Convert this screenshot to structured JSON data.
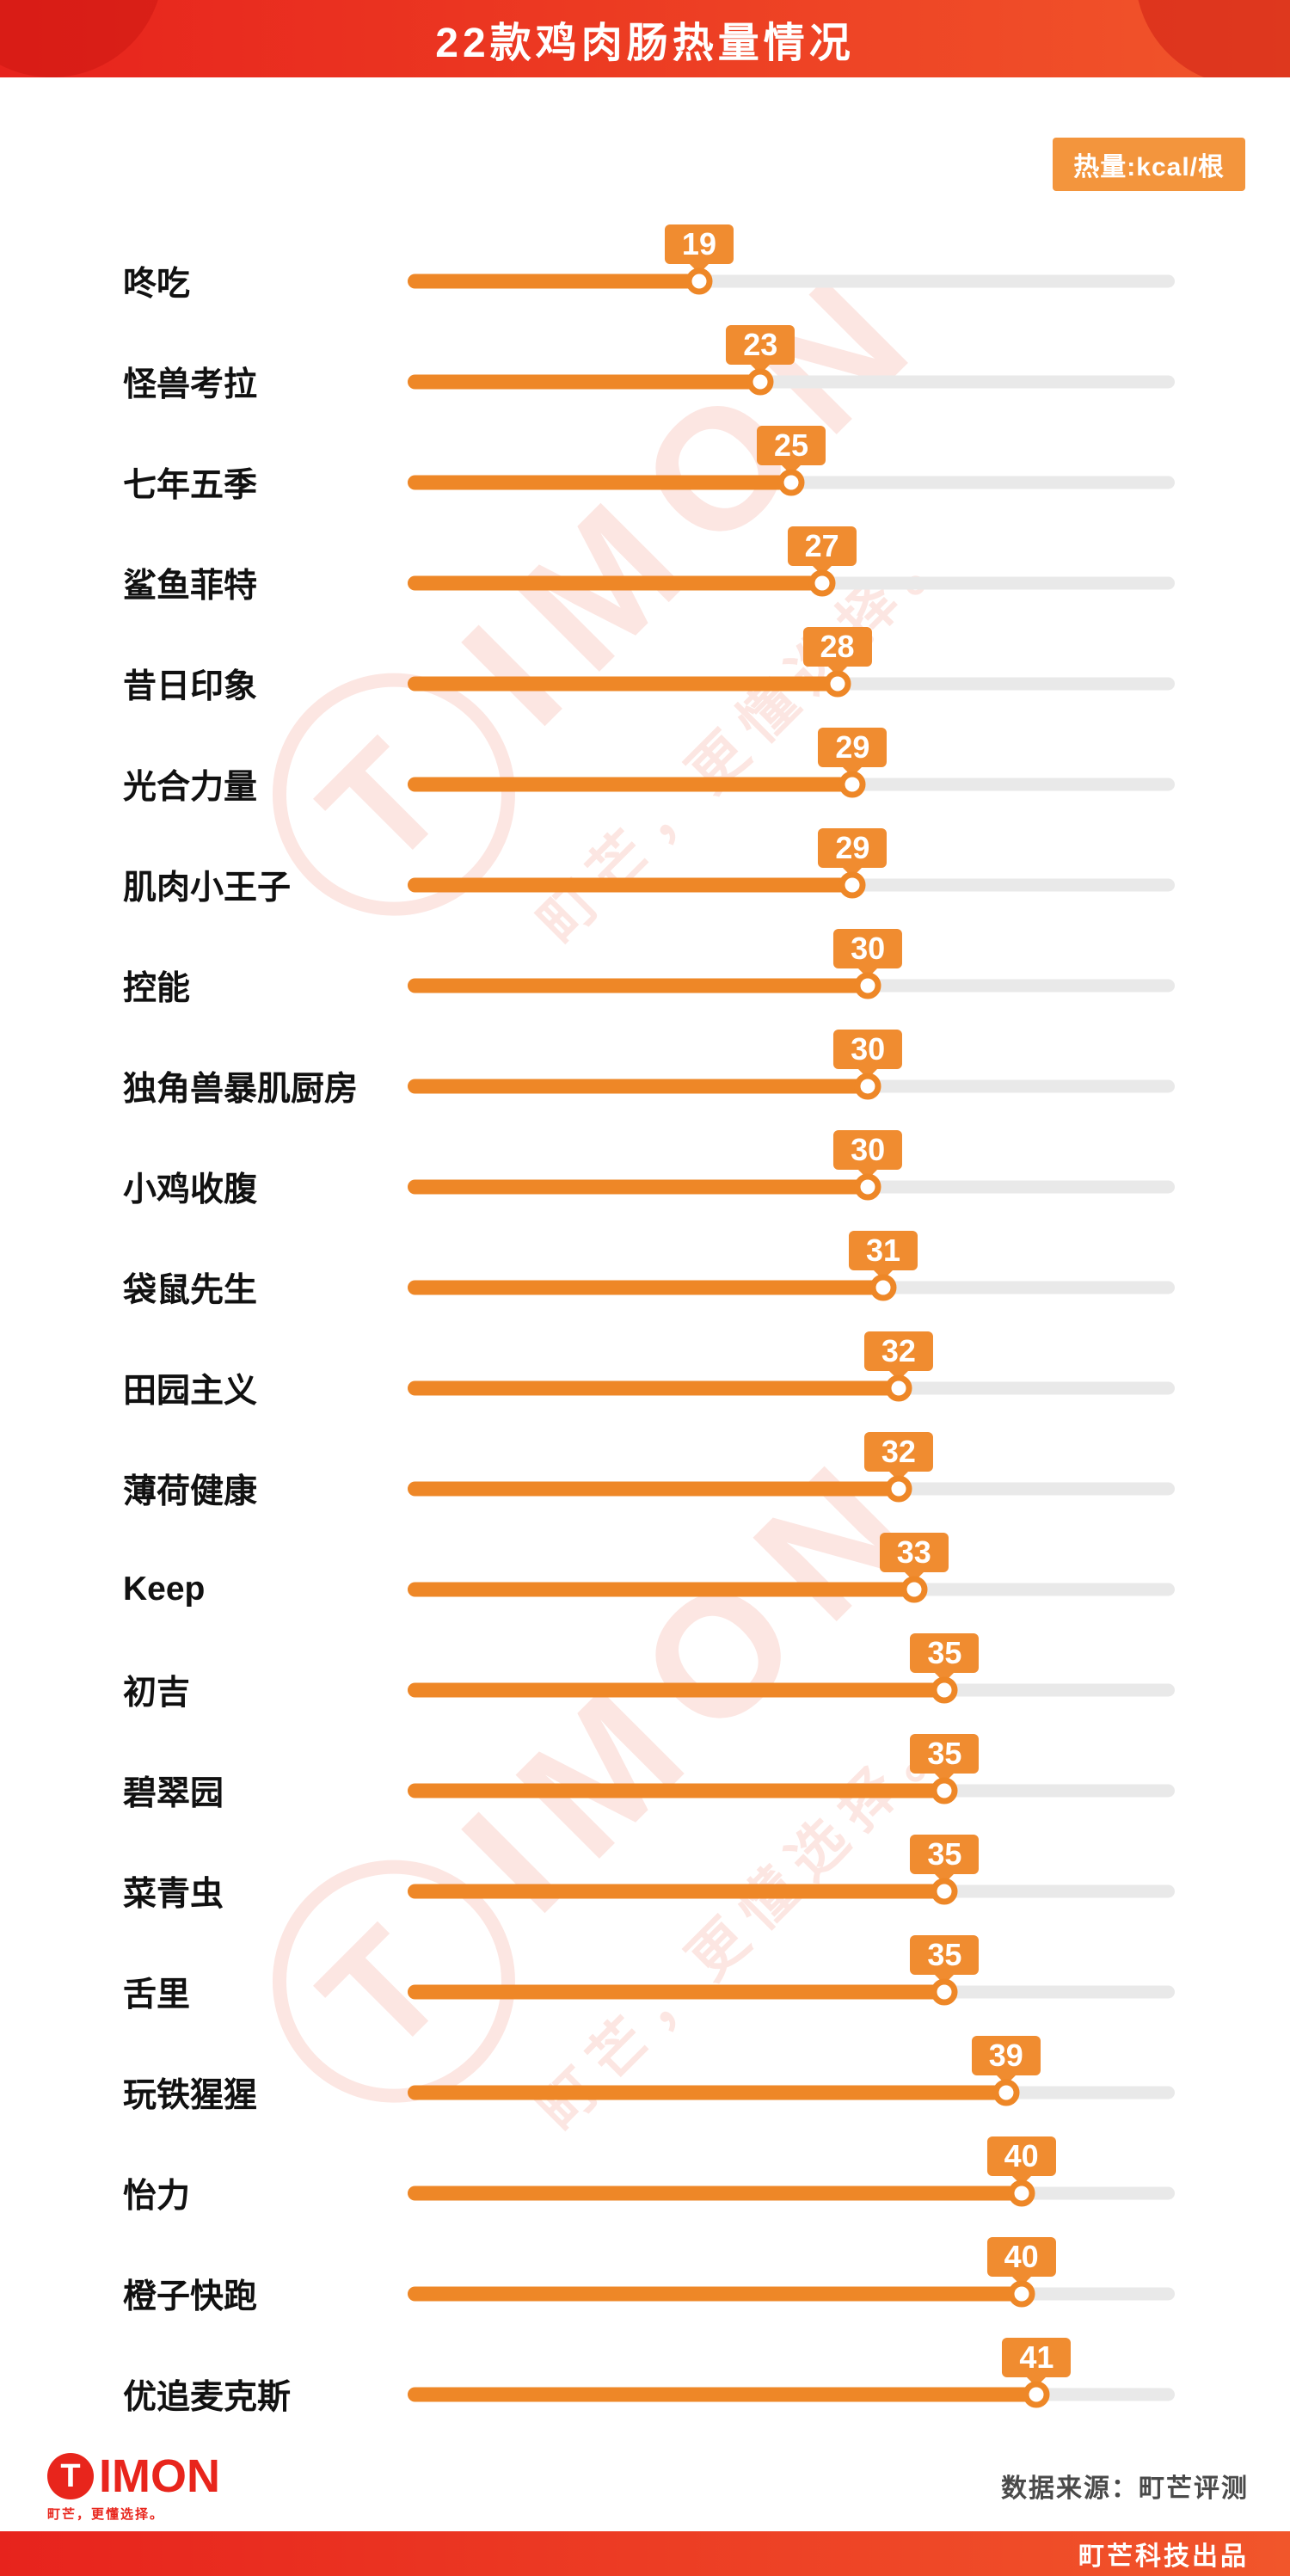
{
  "header": {
    "title": "22款鸡肉肠热量情况"
  },
  "unit_badge": {
    "label": "热量:kcal/根"
  },
  "chart_data": {
    "type": "bar",
    "orientation": "horizontal",
    "title": "22款鸡肉肠热量情况",
    "unit": "kcal/根",
    "categories": [
      "咚吃",
      "怪兽考拉",
      "七年五季",
      "鲨鱼菲特",
      "昔日印象",
      "光合力量",
      "肌肉小王子",
      "控能",
      "独角兽暴肌厨房",
      "小鸡收腹",
      "袋鼠先生",
      "田园主义",
      "薄荷健康",
      "Keep",
      "初吉",
      "碧翠园",
      "菜青虫",
      "舌里",
      "玩铁猩猩",
      "怡力",
      "橙子快跑",
      "优追麦克斯"
    ],
    "values": [
      19,
      23,
      25,
      27,
      28,
      29,
      29,
      30,
      30,
      30,
      31,
      32,
      32,
      33,
      35,
      35,
      35,
      35,
      39,
      40,
      40,
      41
    ],
    "xlim": [
      0,
      50
    ],
    "value_labels_shown": true,
    "bar_color": "#EE8727",
    "track_color": "#E9E9E9",
    "legend_position": "none",
    "grid": false
  },
  "watermark": {
    "brand_initial": "T",
    "brand_rest": "IMON",
    "slogan": "町芒，更懂选择。"
  },
  "footer": {
    "logo_initial": "T",
    "logo_rest": "IMON",
    "logo_sub": "町芒，更懂选择。",
    "source": "数据来源：町芒评测",
    "produced": "町芒科技出品"
  },
  "colors": {
    "header_red": "#E7231D",
    "header_red_light": "#F1562B",
    "accent_orange": "#EE8727",
    "badge_orange": "#F08C30",
    "unit_badge_orange": "#F3953D",
    "track_gray": "#E9E9E9",
    "watermark_pink": "rgba(233,85,58,0.15)"
  }
}
